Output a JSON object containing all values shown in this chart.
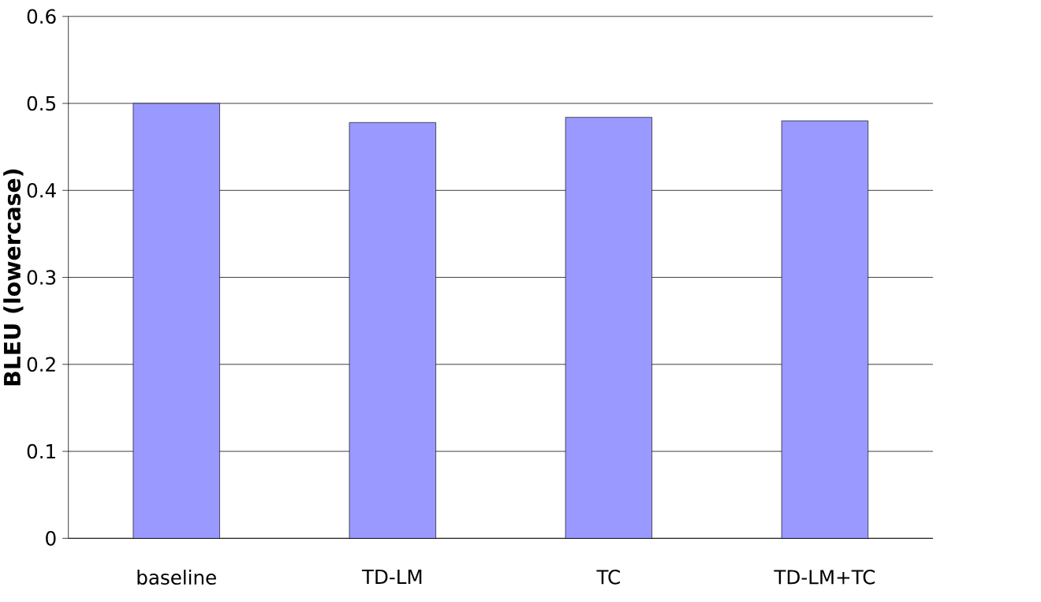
{
  "chart_data": {
    "type": "bar",
    "ylabel": "BLEU (lowercase)",
    "categories": [
      "baseline",
      "TD-LM",
      "TC",
      "TD-LM+TC"
    ],
    "values": [
      0.5,
      0.478,
      0.484,
      0.48
    ],
    "color": "#9999ff",
    "ylim": [
      0,
      0.6
    ],
    "yticks": [
      0,
      0.1,
      0.2,
      0.3,
      0.4,
      0.5,
      0.6
    ],
    "grid": "y"
  }
}
